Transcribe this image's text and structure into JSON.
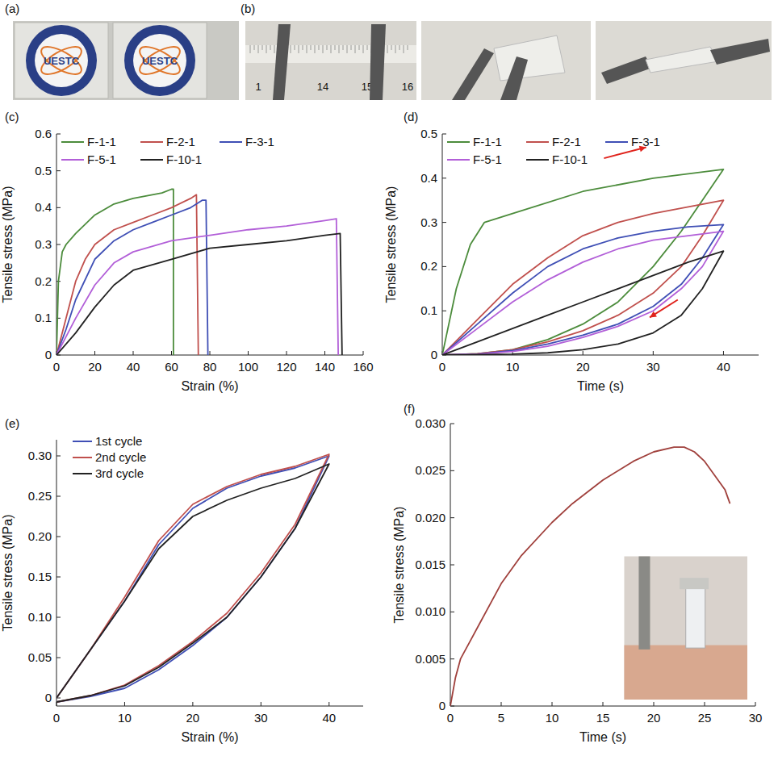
{
  "photos": {
    "a": {
      "label": "(a)",
      "texts": [
        "UESTC",
        "UESTC"
      ]
    },
    "b": {
      "label": "(b)",
      "ruler": [
        "1",
        "14",
        "15",
        "16"
      ]
    }
  },
  "chart_data": [
    {
      "type": "line",
      "title": "(c)",
      "xlabel": "Strain (%)",
      "ylabel": "Tensile stress (MPa)",
      "xlim": [
        0,
        160
      ],
      "xticks": [
        0,
        20,
        40,
        60,
        80,
        100,
        120,
        140,
        160
      ],
      "ylim": [
        0,
        0.6
      ],
      "yticks": [
        0,
        0.1,
        0.2,
        0.3,
        0.4,
        0.5,
        0.6
      ],
      "legend": "top",
      "series": [
        {
          "name": "F-1-1",
          "color": "#4c8c3c",
          "x": [
            0,
            1,
            3,
            5,
            10,
            20,
            30,
            40,
            50,
            55,
            60,
            61,
            61
          ],
          "values": [
            0,
            0.2,
            0.28,
            0.3,
            0.33,
            0.38,
            0.41,
            0.425,
            0.435,
            0.44,
            0.45,
            0.45,
            0
          ]
        },
        {
          "name": "F-2-1",
          "color": "#c0504d",
          "x": [
            0,
            5,
            10,
            15,
            20,
            30,
            40,
            50,
            60,
            70,
            73,
            74
          ],
          "values": [
            0,
            0.1,
            0.2,
            0.26,
            0.3,
            0.34,
            0.36,
            0.38,
            0.4,
            0.425,
            0.435,
            0
          ]
        },
        {
          "name": "F-3-1",
          "color": "#3f4fb5",
          "x": [
            0,
            5,
            10,
            20,
            30,
            40,
            50,
            60,
            70,
            76,
            78,
            79
          ],
          "values": [
            0,
            0.07,
            0.15,
            0.26,
            0.31,
            0.34,
            0.36,
            0.38,
            0.4,
            0.42,
            0.42,
            0
          ]
        },
        {
          "name": "F-5-1",
          "color": "#b25fd8",
          "x": [
            0,
            10,
            20,
            30,
            40,
            60,
            80,
            100,
            120,
            140,
            146,
            147
          ],
          "values": [
            0,
            0.1,
            0.19,
            0.25,
            0.28,
            0.31,
            0.325,
            0.34,
            0.35,
            0.365,
            0.37,
            0
          ]
        },
        {
          "name": "F-10-1",
          "color": "#222222",
          "x": [
            0,
            10,
            20,
            30,
            40,
            60,
            80,
            100,
            120,
            140,
            148,
            149
          ],
          "values": [
            0,
            0.06,
            0.13,
            0.19,
            0.23,
            0.26,
            0.29,
            0.3,
            0.31,
            0.325,
            0.33,
            0
          ]
        }
      ]
    },
    {
      "type": "line",
      "title": "(d)",
      "xlabel": "Time (s)",
      "ylabel": "Tensile stress (MPa)",
      "xlim": [
        0,
        45
      ],
      "xticks": [
        0,
        10,
        20,
        30,
        40
      ],
      "ylim": [
        0,
        0.5
      ],
      "yticks": [
        0,
        0.1,
        0.2,
        0.3,
        0.4,
        0.5
      ],
      "legend": "top",
      "series": [
        {
          "name": "F-1-1",
          "color": "#4c8c3c",
          "x": [
            0,
            2,
            4,
            6,
            10,
            20,
            30,
            40,
            37,
            34,
            30,
            25,
            20,
            15,
            10,
            5,
            0
          ],
          "values": [
            0,
            0.15,
            0.25,
            0.3,
            0.32,
            0.37,
            0.4,
            0.42,
            0.35,
            0.28,
            0.2,
            0.12,
            0.07,
            0.035,
            0.012,
            0.003,
            0
          ]
        },
        {
          "name": "F-2-1",
          "color": "#c0504d",
          "x": [
            0,
            5,
            10,
            15,
            20,
            25,
            30,
            35,
            40,
            37,
            34,
            30,
            25,
            20,
            15,
            10,
            5,
            0
          ],
          "values": [
            0,
            0.08,
            0.16,
            0.22,
            0.27,
            0.3,
            0.32,
            0.335,
            0.35,
            0.27,
            0.2,
            0.14,
            0.09,
            0.055,
            0.03,
            0.012,
            0.003,
            0
          ]
        },
        {
          "name": "F-3-1",
          "color": "#3f4fb5",
          "x": [
            0,
            5,
            10,
            15,
            20,
            25,
            30,
            35,
            40,
            37,
            34,
            30,
            25,
            20,
            15,
            10,
            5,
            0
          ],
          "values": [
            0,
            0.07,
            0.14,
            0.2,
            0.24,
            0.265,
            0.28,
            0.29,
            0.295,
            0.22,
            0.16,
            0.11,
            0.07,
            0.045,
            0.025,
            0.01,
            0.002,
            0
          ]
        },
        {
          "name": "F-5-1",
          "color": "#b25fd8",
          "x": [
            0,
            5,
            10,
            15,
            20,
            25,
            30,
            35,
            40,
            37,
            34,
            30,
            25,
            20,
            15,
            10,
            5,
            0
          ],
          "values": [
            0,
            0.06,
            0.12,
            0.17,
            0.21,
            0.24,
            0.26,
            0.27,
            0.28,
            0.2,
            0.15,
            0.1,
            0.065,
            0.04,
            0.02,
            0.008,
            0.002,
            0
          ]
        },
        {
          "name": "F-10-1",
          "color": "#222222",
          "x": [
            0,
            5,
            10,
            15,
            20,
            25,
            30,
            35,
            40,
            37,
            34,
            30,
            25,
            20,
            15,
            10,
            5,
            0
          ],
          "values": [
            0,
            0.03,
            0.06,
            0.09,
            0.12,
            0.15,
            0.18,
            0.21,
            0.235,
            0.15,
            0.09,
            0.05,
            0.025,
            0.012,
            0.005,
            0.002,
            0.001,
            0
          ]
        }
      ]
    },
    {
      "type": "line",
      "title": "(e)",
      "xlabel": "Strain (%)",
      "ylabel": "Tensile stress (MPa)",
      "xlim": [
        0,
        45
      ],
      "xticks": [
        0,
        10,
        20,
        30,
        40
      ],
      "ylim": [
        -0.01,
        0.32
      ],
      "yticks": [
        0,
        0.05,
        {
          "value": 0.1,
          "label": "0.10"
        },
        0.15,
        {
          "value": 0.2,
          "label": "0.20"
        },
        0.25,
        {
          "value": 0.3,
          "label": "0.30"
        }
      ],
      "legend": "top-left",
      "series": [
        {
          "name": "1st cycle",
          "color": "#3f4fb5",
          "x": [
            0,
            5,
            10,
            15,
            20,
            25,
            30,
            35,
            40,
            35,
            30,
            25,
            20,
            15,
            10,
            5,
            0
          ],
          "values": [
            0,
            0.06,
            0.12,
            0.19,
            0.235,
            0.26,
            0.275,
            0.285,
            0.3,
            0.21,
            0.15,
            0.1,
            0.065,
            0.035,
            0.012,
            0.002,
            -0.005
          ]
        },
        {
          "name": "2nd cycle",
          "color": "#c0504d",
          "x": [
            0,
            5,
            10,
            15,
            20,
            25,
            30,
            35,
            40,
            35,
            30,
            25,
            20,
            15,
            10,
            5,
            0
          ],
          "values": [
            0,
            0.06,
            0.125,
            0.195,
            0.24,
            0.262,
            0.277,
            0.287,
            0.302,
            0.215,
            0.155,
            0.105,
            0.07,
            0.04,
            0.016,
            0.003,
            -0.005
          ]
        },
        {
          "name": "3rd cycle",
          "color": "#222222",
          "x": [
            0,
            5,
            10,
            15,
            20,
            25,
            30,
            35,
            40,
            35,
            30,
            25,
            20,
            15,
            10,
            5,
            0
          ],
          "values": [
            0,
            0.06,
            0.12,
            0.185,
            0.225,
            0.245,
            0.26,
            0.272,
            0.29,
            0.21,
            0.15,
            0.1,
            0.068,
            0.038,
            0.015,
            0.003,
            -0.005
          ]
        }
      ]
    },
    {
      "type": "line",
      "title": "(f)",
      "xlabel": "Time (s)",
      "ylabel": "Tensile stress (MPa)",
      "xlim": [
        0,
        30
      ],
      "xticks": [
        0,
        5,
        10,
        15,
        20,
        25,
        30
      ],
      "ylim": [
        0,
        0.03
      ],
      "yticks": [
        0,
        0.005,
        {
          "value": 0.01,
          "label": "0.010"
        },
        0.015,
        {
          "value": 0.02,
          "label": "0.020"
        },
        0.025,
        {
          "value": 0.03,
          "label": "0.030"
        }
      ],
      "series": [
        {
          "color": "#a0403c",
          "x": [
            0,
            0.5,
            1,
            2,
            3,
            5,
            7,
            10,
            12,
            15,
            18,
            20,
            22,
            23,
            24,
            25,
            26,
            27,
            27.5
          ],
          "values": [
            0,
            0.003,
            0.005,
            0.007,
            0.009,
            0.013,
            0.016,
            0.0195,
            0.0215,
            0.024,
            0.026,
            0.027,
            0.0275,
            0.0275,
            0.027,
            0.026,
            0.0245,
            0.023,
            0.0215
          ]
        }
      ]
    }
  ]
}
